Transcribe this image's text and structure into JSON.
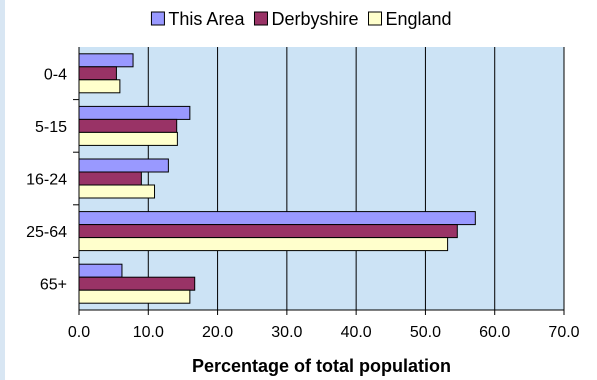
{
  "chart_data": {
    "type": "bar",
    "orientation": "horizontal",
    "categories": [
      "0-4",
      "5-15",
      "16-24",
      "25-64",
      "65+"
    ],
    "series": [
      {
        "name": "This Area",
        "values": [
          7.8,
          16.0,
          12.9,
          57.2,
          6.2
        ],
        "color": "#9999ff"
      },
      {
        "name": "Derbyshire",
        "values": [
          5.4,
          14.1,
          9.0,
          54.6,
          16.7
        ],
        "color": "#993366"
      },
      {
        "name": "England",
        "values": [
          5.9,
          14.2,
          10.9,
          53.2,
          16.0
        ],
        "color": "#ffffcc"
      }
    ],
    "xlabel": "Percentage of total population",
    "xlim": [
      0,
      70
    ],
    "xticks": [
      "0.0",
      "10.0",
      "20.0",
      "30.0",
      "40.0",
      "50.0",
      "60.0",
      "70.0"
    ],
    "grid": true,
    "plot_background": "#cce3f5",
    "legend_position": "top"
  }
}
